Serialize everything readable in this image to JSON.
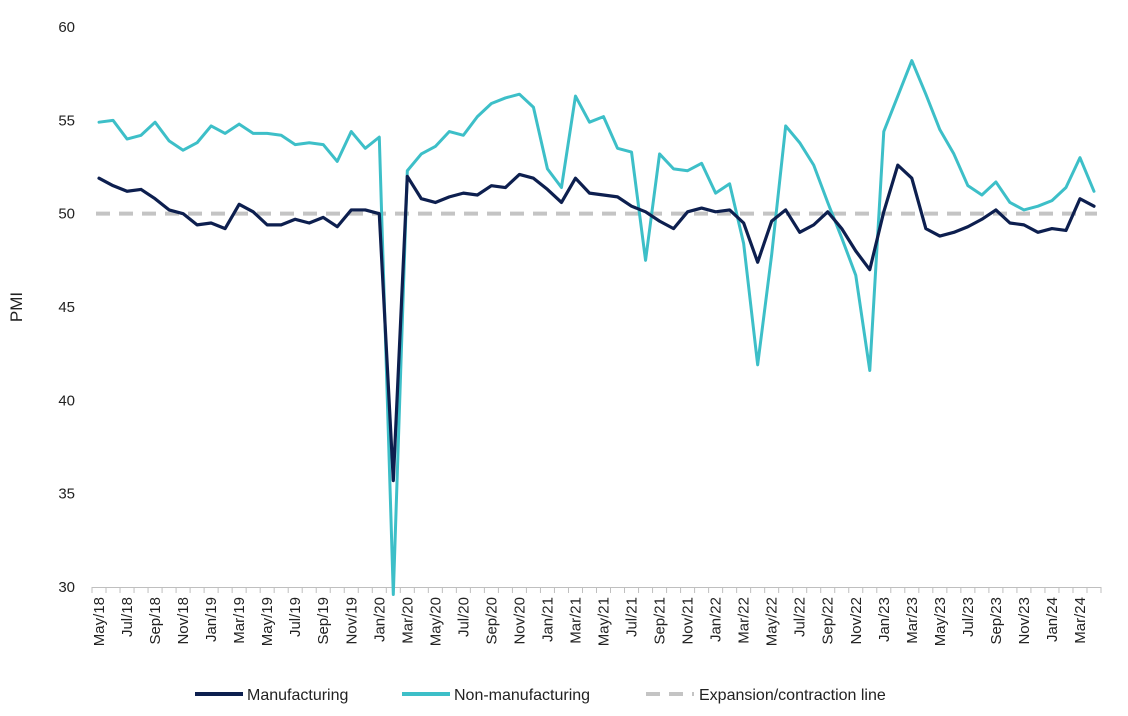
{
  "chart_data": {
    "type": "line",
    "ylabel": "PMI",
    "ylim": [
      30,
      60
    ],
    "yticks": [
      30,
      35,
      40,
      45,
      50,
      55,
      60
    ],
    "xtick_labels": [
      "May/18",
      "Jul/18",
      "Sep/18",
      "Nov/18",
      "Jan/19",
      "Mar/19",
      "May/19",
      "Jul/19",
      "Sep/19",
      "Nov/19",
      "Jan/20",
      "Mar/20",
      "May/20",
      "Jul/20",
      "Sep/20",
      "Nov/20",
      "Jan/21",
      "Mar/21",
      "May/21",
      "Jul/21",
      "Sep/21",
      "Nov/21",
      "Jan/22",
      "Mar/22",
      "May/22",
      "Jul/22",
      "Sep/22",
      "Nov/22",
      "Jan/23",
      "Mar/23",
      "May/23",
      "Jul/23",
      "Sep/23",
      "Nov/23",
      "Jan/24",
      "Mar/24"
    ],
    "x": [
      "May/18",
      "Jun/18",
      "Jul/18",
      "Aug/18",
      "Sep/18",
      "Oct/18",
      "Nov/18",
      "Dec/18",
      "Jan/19",
      "Feb/19",
      "Mar/19",
      "Apr/19",
      "May/19",
      "Jun/19",
      "Jul/19",
      "Aug/19",
      "Sep/19",
      "Oct/19",
      "Nov/19",
      "Dec/19",
      "Jan/20",
      "Feb/20",
      "Mar/20",
      "Apr/20",
      "May/20",
      "Jun/20",
      "Jul/20",
      "Aug/20",
      "Sep/20",
      "Oct/20",
      "Nov/20",
      "Dec/20",
      "Jan/21",
      "Feb/21",
      "Mar/21",
      "Apr/21",
      "May/21",
      "Jun/21",
      "Jul/21",
      "Aug/21",
      "Sep/21",
      "Oct/21",
      "Nov/21",
      "Dec/21",
      "Jan/22",
      "Feb/22",
      "Mar/22",
      "Apr/22",
      "May/22",
      "Jun/22",
      "Jul/22",
      "Aug/22",
      "Sep/22",
      "Oct/22",
      "Nov/22",
      "Dec/22",
      "Jan/23",
      "Feb/23",
      "Mar/23",
      "Apr/23",
      "May/23",
      "Jun/23",
      "Jul/23",
      "Aug/23",
      "Sep/23",
      "Oct/23",
      "Nov/23",
      "Dec/23",
      "Jan/24",
      "Feb/24",
      "Mar/24",
      "Apr/24"
    ],
    "series": [
      {
        "name": "Manufacturing",
        "color": "#0d1f4f",
        "values": [
          51.9,
          51.5,
          51.2,
          51.3,
          50.8,
          50.2,
          50.0,
          49.4,
          49.5,
          49.2,
          50.5,
          50.1,
          49.4,
          49.4,
          49.7,
          49.5,
          49.8,
          49.3,
          50.2,
          50.2,
          50.0,
          35.7,
          52.0,
          50.8,
          50.6,
          50.9,
          51.1,
          51.0,
          51.5,
          51.4,
          52.1,
          51.9,
          51.3,
          50.6,
          51.9,
          51.1,
          51.0,
          50.9,
          50.4,
          50.1,
          49.6,
          49.2,
          50.1,
          50.3,
          50.1,
          50.2,
          49.5,
          47.4,
          49.6,
          50.2,
          49.0,
          49.4,
          50.1,
          49.2,
          48.0,
          47.0,
          50.1,
          52.6,
          51.9,
          49.2,
          48.8,
          49.0,
          49.3,
          49.7,
          50.2,
          49.5,
          49.4,
          49.0,
          49.2,
          49.1,
          50.8,
          50.4
        ]
      },
      {
        "name": "Non-manufacturing",
        "color": "#3dbfc8",
        "values": [
          54.9,
          55.0,
          54.0,
          54.2,
          54.9,
          53.9,
          53.4,
          53.8,
          54.7,
          54.3,
          54.8,
          54.3,
          54.3,
          54.2,
          53.7,
          53.8,
          53.7,
          52.8,
          54.4,
          53.5,
          54.1,
          29.6,
          52.3,
          53.2,
          53.6,
          54.4,
          54.2,
          55.2,
          55.9,
          56.2,
          56.4,
          55.7,
          52.4,
          51.4,
          56.3,
          54.9,
          55.2,
          53.5,
          53.3,
          47.5,
          53.2,
          52.4,
          52.3,
          52.7,
          51.1,
          51.6,
          48.4,
          41.9,
          47.8,
          54.7,
          53.8,
          52.6,
          50.6,
          48.7,
          46.7,
          41.6,
          54.4,
          56.3,
          58.2,
          56.4,
          54.5,
          53.2,
          51.5,
          51.0,
          51.7,
          50.6,
          50.2,
          50.4,
          50.7,
          51.4,
          53.0,
          51.2
        ]
      }
    ],
    "reference_line": {
      "name": "Expansion/contraction line",
      "y": 50,
      "color": "#c4c4c4"
    },
    "legend_placement": "bottom-center",
    "grid": false
  }
}
